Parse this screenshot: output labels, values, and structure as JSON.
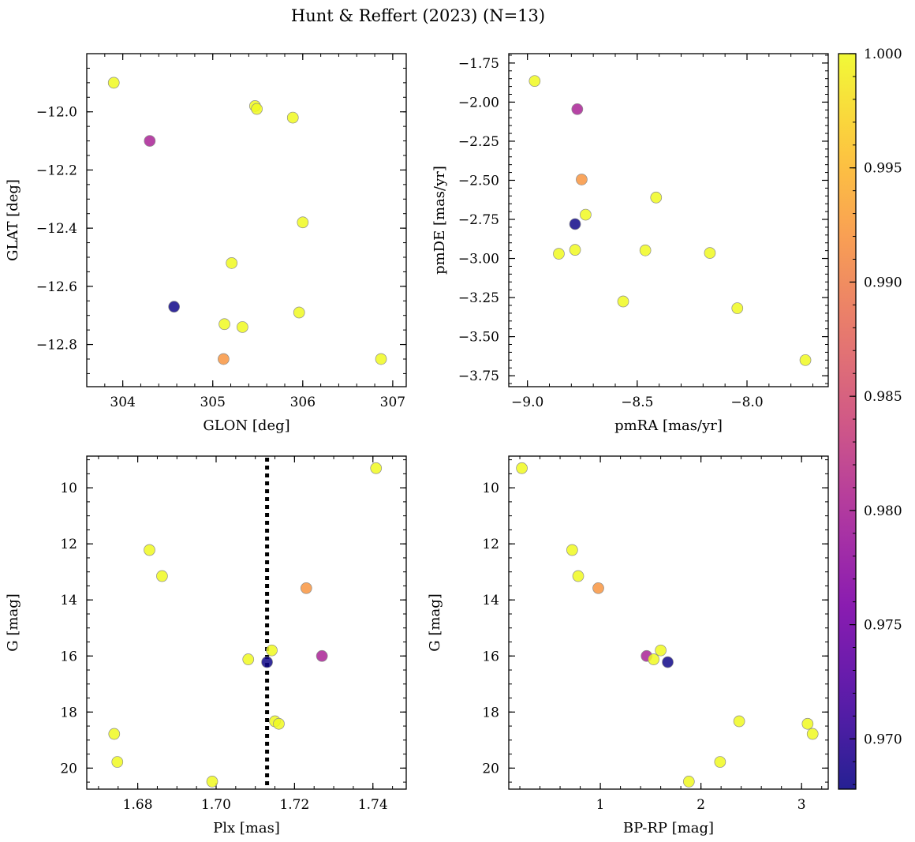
{
  "figure": {
    "title": "Hunt & Reffert (2023) (N=13)"
  },
  "colorbar": {
    "colormap": "plasma",
    "min": 0.9678,
    "max": 1.0,
    "ticks": [
      0.97,
      0.975,
      0.98,
      0.985,
      0.99,
      0.995,
      1.0
    ],
    "tick_labels": [
      "0.970",
      "0.975",
      "0.980",
      "0.985",
      "0.990",
      "0.995",
      "1.000"
    ]
  },
  "chart_data": [
    {
      "type": "scatter",
      "xlabel": "GLON [deg]",
      "ylabel": "GLAT [deg]",
      "xlim": [
        303.6,
        307.15
      ],
      "ylim": [
        -12.945,
        -11.8
      ],
      "y_inverted": false,
      "xticks": [
        304,
        305,
        306,
        307
      ],
      "xtick_labels": [
        "304",
        "305",
        "306",
        "307"
      ],
      "yticks": [
        -12.0,
        -12.2,
        -12.4,
        -12.6,
        -12.8
      ],
      "ytick_labels": [
        "−12.0",
        "−12.2",
        "−12.4",
        "−12.6",
        "−12.8"
      ],
      "points": [
        {
          "x": 303.9,
          "y": -11.9,
          "c": 1.0
        },
        {
          "x": 304.3,
          "y": -12.1,
          "c": 0.98
        },
        {
          "x": 304.57,
          "y": -12.67,
          "c": 0.968
        },
        {
          "x": 305.12,
          "y": -12.85,
          "c": 0.992
        },
        {
          "x": 305.13,
          "y": -12.73,
          "c": 1.0
        },
        {
          "x": 305.21,
          "y": -12.52,
          "c": 1.0
        },
        {
          "x": 305.33,
          "y": -12.74,
          "c": 1.0
        },
        {
          "x": 305.47,
          "y": -11.98,
          "c": 1.0
        },
        {
          "x": 305.49,
          "y": -11.99,
          "c": 1.0
        },
        {
          "x": 305.89,
          "y": -12.02,
          "c": 1.0
        },
        {
          "x": 305.96,
          "y": -12.69,
          "c": 1.0
        },
        {
          "x": 306.0,
          "y": -12.38,
          "c": 1.0
        },
        {
          "x": 306.87,
          "y": -12.85,
          "c": 1.0
        }
      ]
    },
    {
      "type": "scatter",
      "xlabel": "pmRA [mas/yr]",
      "ylabel": "pmDE [mas/yr]",
      "xlim": [
        -9.085,
        -7.63
      ],
      "ylim": [
        -3.82,
        -1.69
      ],
      "y_inverted": false,
      "xticks": [
        -9.0,
        -8.5,
        -8.0
      ],
      "xtick_labels": [
        "−9.0",
        "−8.5",
        "−8.0"
      ],
      "yticks": [
        -1.75,
        -2.0,
        -2.25,
        -2.5,
        -2.75,
        -3.0,
        -3.25,
        -3.5,
        -3.75
      ],
      "ytick_labels": [
        "−1.75",
        "−2.00",
        "−2.25",
        "−2.50",
        "−2.75",
        "−3.00",
        "−3.25",
        "−3.50",
        "−3.75"
      ],
      "points": [
        {
          "x": -8.967,
          "y": -1.865,
          "c": 1.0
        },
        {
          "x": -8.773,
          "y": -2.045,
          "c": 0.98
        },
        {
          "x": -8.753,
          "y": -2.495,
          "c": 0.992
        },
        {
          "x": -8.735,
          "y": -2.72,
          "c": 1.0
        },
        {
          "x": -8.783,
          "y": -2.78,
          "c": 0.968
        },
        {
          "x": -8.783,
          "y": -2.945,
          "c": 1.0
        },
        {
          "x": -8.857,
          "y": -2.97,
          "c": 1.0
        },
        {
          "x": -8.564,
          "y": -3.275,
          "c": 1.0
        },
        {
          "x": -8.463,
          "y": -2.948,
          "c": 1.0
        },
        {
          "x": -8.414,
          "y": -2.61,
          "c": 1.0
        },
        {
          "x": -8.169,
          "y": -2.965,
          "c": 1.0
        },
        {
          "x": -8.044,
          "y": -3.318,
          "c": 1.0
        },
        {
          "x": -7.734,
          "y": -3.65,
          "c": 1.0
        }
      ]
    },
    {
      "type": "scatter",
      "xlabel": "Plx [mas]",
      "ylabel": "G [mag]",
      "xlim": [
        1.667,
        1.7485
      ],
      "ylim": [
        20.75,
        8.87
      ],
      "y_inverted": true,
      "xticks": [
        1.68,
        1.7,
        1.72,
        1.74
      ],
      "xtick_labels": [
        "1.68",
        "1.70",
        "1.72",
        "1.74"
      ],
      "yticks": [
        10,
        12,
        14,
        16,
        18,
        20
      ],
      "ytick_labels": [
        "10",
        "12",
        "14",
        "16",
        "18",
        "20"
      ],
      "vline": {
        "x": 1.713,
        "style": "dotted"
      },
      "points": [
        {
          "x": 1.7408,
          "y": 9.3,
          "c": 1.0
        },
        {
          "x": 1.683,
          "y": 12.22,
          "c": 1.0
        },
        {
          "x": 1.6862,
          "y": 13.15,
          "c": 1.0
        },
        {
          "x": 1.723,
          "y": 13.58,
          "c": 0.992
        },
        {
          "x": 1.7142,
          "y": 15.8,
          "c": 1.0
        },
        {
          "x": 1.727,
          "y": 16.0,
          "c": 0.98
        },
        {
          "x": 1.7082,
          "y": 16.12,
          "c": 1.0
        },
        {
          "x": 1.713,
          "y": 16.22,
          "c": 0.968
        },
        {
          "x": 1.715,
          "y": 18.33,
          "c": 1.0
        },
        {
          "x": 1.716,
          "y": 18.42,
          "c": 1.0
        },
        {
          "x": 1.674,
          "y": 18.78,
          "c": 1.0
        },
        {
          "x": 1.6748,
          "y": 19.78,
          "c": 1.0
        },
        {
          "x": 1.699,
          "y": 20.48,
          "c": 1.0
        }
      ]
    },
    {
      "type": "scatter",
      "xlabel": "BP-RP [mag]",
      "ylabel": "G [mag]",
      "xlim": [
        0.09,
        3.265
      ],
      "ylim": [
        20.75,
        8.87
      ],
      "y_inverted": true,
      "xticks": [
        1,
        2,
        3
      ],
      "xtick_labels": [
        "1",
        "2",
        "3"
      ],
      "yticks": [
        10,
        12,
        14,
        16,
        18,
        20
      ],
      "ytick_labels": [
        "10",
        "12",
        "14",
        "16",
        "18",
        "20"
      ],
      "points": [
        {
          "x": 0.22,
          "y": 9.3,
          "c": 1.0
        },
        {
          "x": 0.72,
          "y": 12.22,
          "c": 1.0
        },
        {
          "x": 0.78,
          "y": 13.15,
          "c": 1.0
        },
        {
          "x": 0.98,
          "y": 13.58,
          "c": 0.992
        },
        {
          "x": 1.46,
          "y": 16.0,
          "c": 0.98
        },
        {
          "x": 1.53,
          "y": 16.12,
          "c": 1.0
        },
        {
          "x": 1.6,
          "y": 15.8,
          "c": 1.0
        },
        {
          "x": 1.67,
          "y": 16.22,
          "c": 0.968
        },
        {
          "x": 2.38,
          "y": 18.33,
          "c": 1.0
        },
        {
          "x": 3.06,
          "y": 18.42,
          "c": 1.0
        },
        {
          "x": 3.11,
          "y": 18.78,
          "c": 1.0
        },
        {
          "x": 2.19,
          "y": 19.78,
          "c": 1.0
        },
        {
          "x": 1.88,
          "y": 20.48,
          "c": 1.0
        }
      ]
    }
  ]
}
